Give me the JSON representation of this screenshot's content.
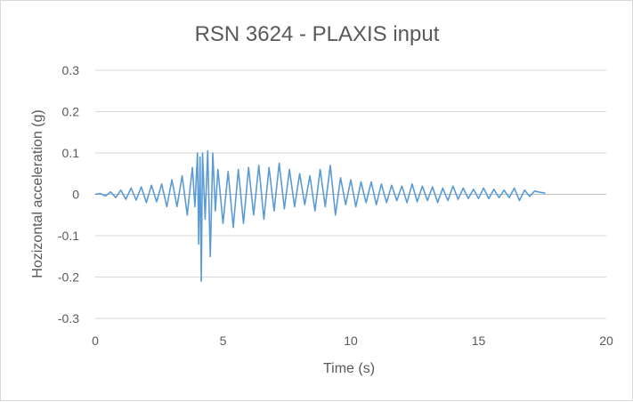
{
  "chart_data": {
    "type": "line",
    "title": "RSN 3624 - PLAXIS input",
    "xlabel": "Time (s)",
    "ylabel": "Hozizontal acceleration (g)",
    "xlim": [
      0,
      20
    ],
    "ylim": [
      -0.3,
      0.3
    ],
    "x_ticks": [
      "0",
      "5",
      "10",
      "15",
      "20"
    ],
    "y_ticks": [
      "0.3",
      "0.2",
      "0.1",
      "0",
      "-0.1",
      "-0.2",
      "-0.3"
    ],
    "grid": "horizontal major gridlines",
    "legend": "none",
    "series": [
      {
        "color": "#5b9bd5",
        "x": [
          0,
          0.2,
          0.4,
          0.6,
          0.8,
          1.0,
          1.2,
          1.4,
          1.6,
          1.8,
          2.0,
          2.2,
          2.4,
          2.6,
          2.8,
          3.0,
          3.2,
          3.4,
          3.6,
          3.8,
          3.9,
          4.0,
          4.05,
          4.1,
          4.15,
          4.2,
          4.3,
          4.4,
          4.5,
          4.6,
          4.7,
          4.8,
          5.0,
          5.2,
          5.4,
          5.6,
          5.8,
          6.0,
          6.2,
          6.4,
          6.6,
          6.8,
          7.0,
          7.2,
          7.4,
          7.6,
          7.8,
          8.0,
          8.2,
          8.4,
          8.6,
          8.8,
          9.0,
          9.2,
          9.4,
          9.6,
          9.8,
          10.0,
          10.2,
          10.4,
          10.6,
          10.8,
          11.0,
          11.2,
          11.4,
          11.6,
          11.8,
          12.0,
          12.2,
          12.4,
          12.6,
          12.8,
          13.0,
          13.2,
          13.4,
          13.6,
          13.8,
          14.0,
          14.2,
          14.4,
          14.6,
          14.8,
          15.0,
          15.2,
          15.4,
          15.6,
          15.8,
          16.0,
          16.2,
          16.4,
          16.6,
          16.8,
          17.0,
          17.2,
          17.4,
          17.6
        ],
        "y": [
          0,
          0.002,
          -0.004,
          0.006,
          -0.008,
          0.01,
          -0.012,
          0.015,
          -0.014,
          0.018,
          -0.02,
          0.022,
          -0.018,
          0.025,
          -0.03,
          0.035,
          -0.03,
          0.045,
          -0.05,
          0.065,
          -0.03,
          0.1,
          -0.12,
          0.09,
          -0.21,
          0.1,
          -0.06,
          0.105,
          -0.15,
          0.1,
          -0.04,
          0.06,
          -0.07,
          0.055,
          -0.08,
          0.06,
          -0.07,
          0.065,
          -0.05,
          0.07,
          -0.06,
          0.065,
          -0.04,
          0.075,
          -0.035,
          0.06,
          -0.03,
          0.05,
          -0.025,
          0.045,
          -0.04,
          0.06,
          -0.03,
          0.07,
          -0.05,
          0.04,
          -0.025,
          0.035,
          -0.03,
          0.03,
          -0.02,
          0.03,
          -0.025,
          0.025,
          -0.02,
          0.022,
          -0.015,
          0.02,
          -0.02,
          0.025,
          -0.018,
          0.02,
          -0.015,
          0.018,
          -0.02,
          0.015,
          -0.015,
          0.02,
          -0.012,
          0.015,
          -0.01,
          0.012,
          -0.01,
          0.015,
          -0.01,
          0.012,
          -0.008,
          0.01,
          -0.008,
          0.015,
          -0.015,
          0.01,
          -0.005,
          0.008,
          0.005,
          0.003
        ]
      }
    ]
  }
}
